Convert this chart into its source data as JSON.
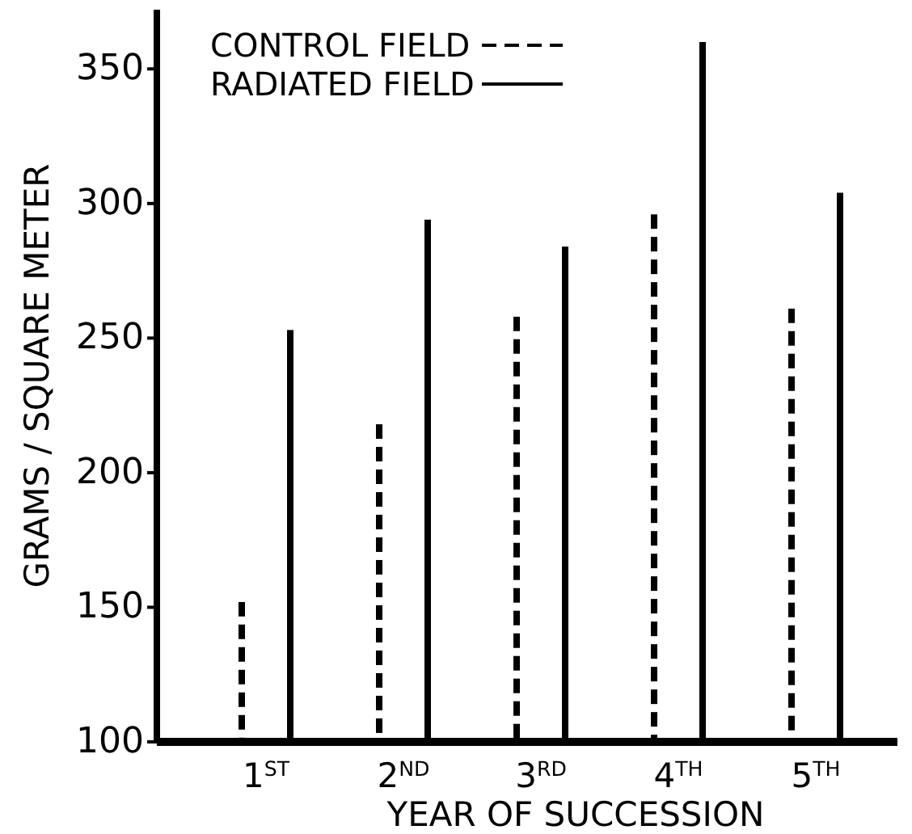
{
  "chart_data": {
    "type": "bar",
    "xlabel": "YEAR OF SUCCESSION",
    "ylabel": "GRAMS / SQUARE METER",
    "categories": [
      "1$^{ST}$",
      "2$^{ND}$",
      "3$^{RD}$",
      "4$^{TH}$",
      "5$^{TH}$"
    ],
    "series": [
      {
        "name": "CONTROL FIELD",
        "color": "#000000",
        "line_style": "dashed",
        "values": [
          152,
          218,
          258,
          296,
          261
        ]
      },
      {
        "name": "RADIATED FIELD",
        "color": "#000000",
        "line_style": "solid",
        "values": [
          253,
          294,
          284,
          360,
          304
        ]
      }
    ],
    "ylim": [
      100,
      372
    ],
    "yticks": [
      100,
      150,
      200,
      250,
      300,
      350
    ],
    "legend": "top",
    "grid": false
  }
}
